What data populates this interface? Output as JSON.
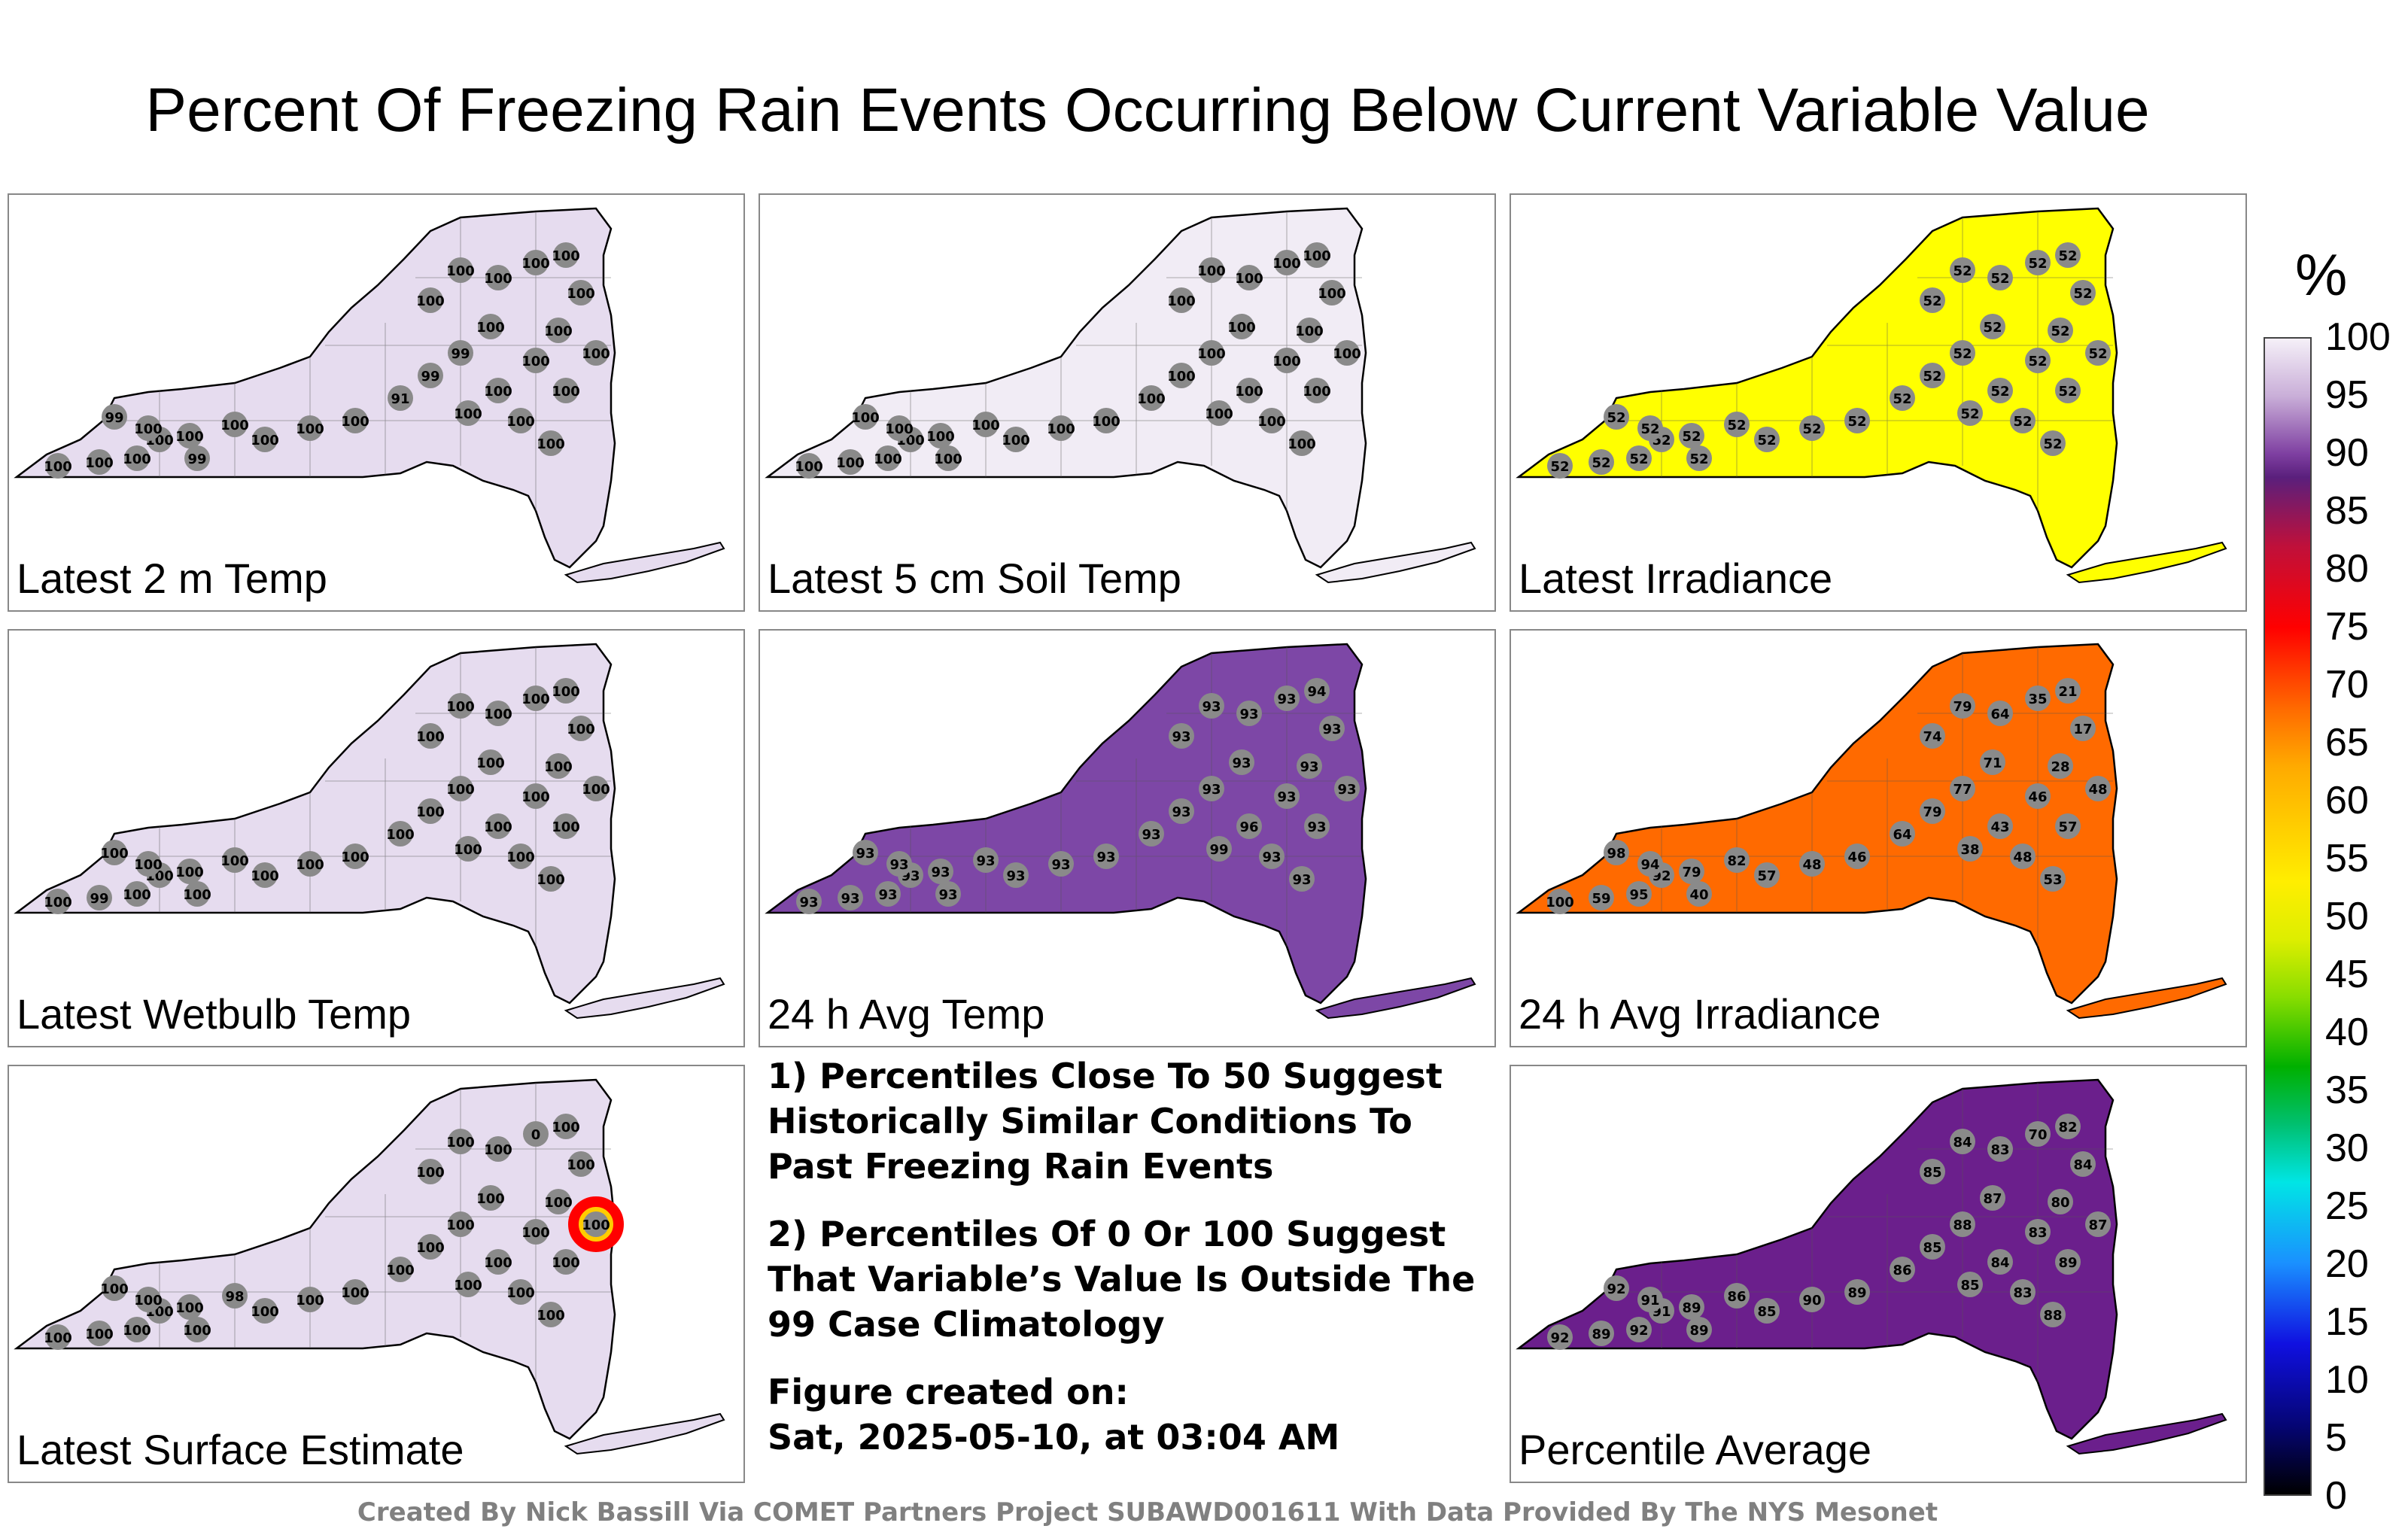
{
  "title": "Percent Of Freezing Rain Events Occurring Below Current Variable Value",
  "colorbar": {
    "unit": "%",
    "ticks": [
      "100",
      "95",
      "90",
      "85",
      "80",
      "75",
      "70",
      "65",
      "60",
      "55",
      "50",
      "45",
      "40",
      "35",
      "30",
      "25",
      "20",
      "15",
      "10",
      "5",
      "0"
    ]
  },
  "notes": {
    "note1": "1) Percentiles Close To 50 Suggest Historically Similar Conditions To Past Freezing Rain Events",
    "note2": "2) Percentiles Of 0 Or 100 Suggest That Variable’s Value Is Outside The 99 Case Climatology",
    "created_label": "Figure created on:",
    "created_date": "Sat, 2025-05-10, at 03:04 AM"
  },
  "credit": "Created By Nick Bassill Via COMET Partners Project SUBAWD001611 With Data Provided By The NYS Mesonet",
  "chart_data": [
    {
      "type": "heatmap",
      "title": "Latest 2 m Temp",
      "fill": "#e6dcef",
      "station_values": [
        "100",
        "100",
        "100",
        "99",
        "100",
        "100",
        "100",
        "100",
        "99",
        "100",
        "100",
        "100",
        "91",
        "99",
        "99",
        "100",
        "100",
        "100",
        "100",
        "100",
        "100",
        "100",
        "100",
        "100",
        "100",
        "100",
        "100",
        "100",
        "100",
        "100"
      ]
    },
    {
      "type": "heatmap",
      "title": "Latest 5 cm Soil Temp",
      "fill": "#f1ecf5",
      "station_values": [
        "100",
        "100",
        "100",
        "100",
        "100",
        "100",
        "100",
        "100",
        "100",
        "100",
        "100",
        "100",
        "100",
        "100",
        "100",
        "100",
        "100",
        "100",
        "100",
        "100",
        "100",
        "100",
        "100",
        "100",
        "100",
        "100",
        "100",
        "100",
        "100",
        "100"
      ]
    },
    {
      "type": "heatmap",
      "title": "Latest Irradiance",
      "fill": "#ffff00",
      "station_values": [
        "52",
        "52",
        "52",
        "52",
        "52",
        "52",
        "52",
        "52",
        "52",
        "52",
        "52",
        "52",
        "52",
        "52",
        "52",
        "52",
        "52",
        "52",
        "52",
        "52",
        "52",
        "52",
        "52",
        "52",
        "52",
        "52",
        "52",
        "52",
        "52",
        "52"
      ]
    },
    {
      "type": "heatmap",
      "title": "Latest Wetbulb Temp",
      "fill": "#e6dcef",
      "station_values": [
        "100",
        "100",
        "100",
        "100",
        "100",
        "100",
        "100",
        "100",
        "100",
        "99",
        "100",
        "100",
        "100",
        "100",
        "100",
        "100",
        "100",
        "100",
        "100",
        "100",
        "100",
        "100",
        "100",
        "100",
        "100",
        "100",
        "100",
        "100",
        "100",
        "100"
      ]
    },
    {
      "type": "heatmap",
      "title": "24 h Avg Temp",
      "fill": "#7d47a6",
      "station_values": [
        "93",
        "93",
        "93",
        "93",
        "93",
        "93",
        "93",
        "93",
        "93",
        "93",
        "93",
        "93",
        "93",
        "93",
        "93",
        "93",
        "93",
        "93",
        "93",
        "93",
        "94",
        "93",
        "93",
        "93",
        "96",
        "99",
        "93",
        "93",
        "93",
        "93"
      ]
    },
    {
      "type": "heatmap",
      "title": "24 h Avg Irradiance",
      "fill": "#ff6a00",
      "station_values": [
        "100",
        "95",
        "92",
        "98",
        "94",
        "79",
        "82",
        "57",
        "40",
        "59",
        "48",
        "46",
        "64",
        "79",
        "77",
        "71",
        "74",
        "79",
        "64",
        "35",
        "21",
        "17",
        "28",
        "46",
        "43",
        "38",
        "48",
        "57",
        "53",
        "48"
      ]
    },
    {
      "type": "heatmap",
      "title": "Latest Surface Estimate",
      "fill": "#e6dcef",
      "station_values": [
        "100",
        "100",
        "100",
        "100",
        "100",
        "100",
        "98",
        "100",
        "100",
        "100",
        "100",
        "100",
        "100",
        "100",
        "100",
        "100",
        "100",
        "100",
        "100",
        "0",
        "100",
        "100",
        "100",
        "100",
        "100",
        "100",
        "100",
        "100",
        "100",
        "100"
      ]
    },
    {
      "type": "heatmap",
      "title": "Percentile Average",
      "fill": "#6b1f8c",
      "station_values": [
        "92",
        "92",
        "91",
        "92",
        "91",
        "89",
        "86",
        "85",
        "89",
        "89",
        "90",
        "89",
        "86",
        "85",
        "88",
        "87",
        "85",
        "84",
        "83",
        "70",
        "82",
        "84",
        "80",
        "83",
        "84",
        "85",
        "83",
        "89",
        "88",
        "87"
      ]
    }
  ]
}
